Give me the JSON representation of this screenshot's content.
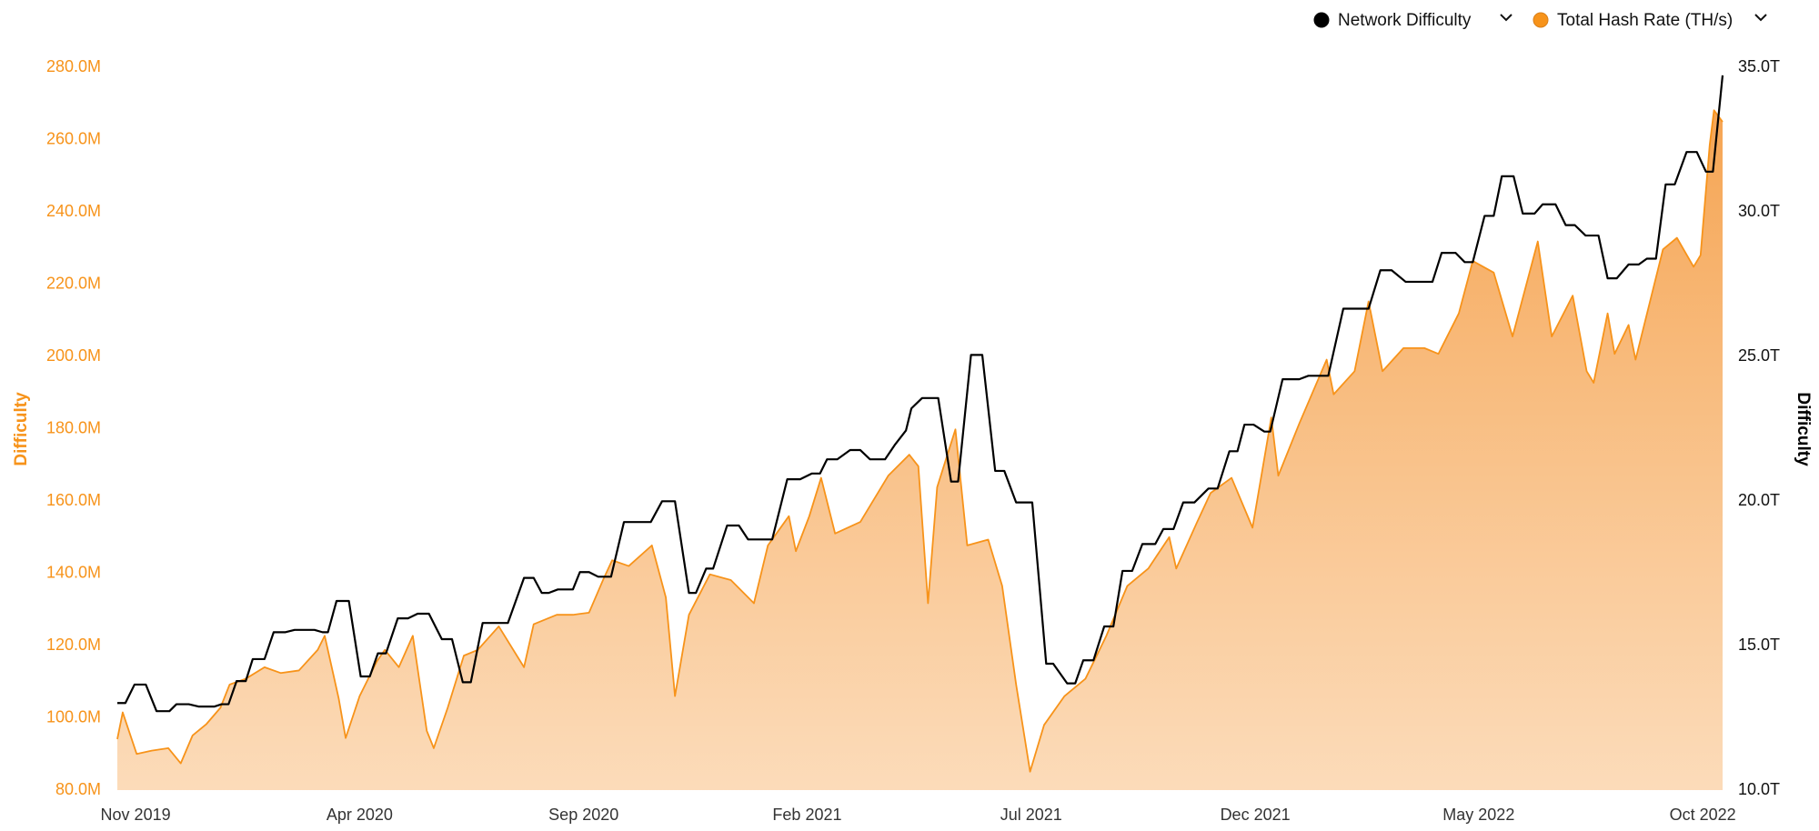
{
  "chart_data": {
    "type": "line",
    "y_label": "Difficulty",
    "y2_label": "Difficulty",
    "xlim": [
      2019.799,
      2022.787
    ],
    "xticks": [
      {
        "value": 2019.833,
        "label": "Nov 2019"
      },
      {
        "value": 2020.25,
        "label": "Apr 2020"
      },
      {
        "value": 2020.667,
        "label": "Sep 2020"
      },
      {
        "value": 2021.083,
        "label": "Feb 2021"
      },
      {
        "value": 2021.5,
        "label": "Jul 2021"
      },
      {
        "value": 2021.917,
        "label": "Dec 2021"
      },
      {
        "value": 2022.333,
        "label": "May 2022"
      },
      {
        "value": 2022.75,
        "label": "Oct 2022"
      }
    ],
    "ylim": [
      80,
      280
    ],
    "yticks": [
      {
        "value": 80,
        "label": "80.0M"
      },
      {
        "value": 100,
        "label": "100.0M"
      },
      {
        "value": 120,
        "label": "120.0M"
      },
      {
        "value": 140,
        "label": "140.0M"
      },
      {
        "value": 160,
        "label": "160.0M"
      },
      {
        "value": 180,
        "label": "180.0M"
      },
      {
        "value": 200,
        "label": "200.0M"
      },
      {
        "value": 220,
        "label": "220.0M"
      },
      {
        "value": 240,
        "label": "240.0M"
      },
      {
        "value": 260,
        "label": "260.0M"
      },
      {
        "value": 280,
        "label": "280.0M"
      }
    ],
    "y2lim": [
      10,
      35
    ],
    "y2ticks": [
      {
        "value": 10,
        "label": "10.0T"
      },
      {
        "value": 15,
        "label": "15.0T"
      },
      {
        "value": 20,
        "label": "20.0T"
      },
      {
        "value": 25,
        "label": "25.0T"
      },
      {
        "value": 30,
        "label": "30.0T"
      },
      {
        "value": 35,
        "label": "35.0T"
      }
    ],
    "legend": "top-right",
    "grid": false,
    "series": [
      {
        "name": "Network Difficulty",
        "color": "#000000",
        "axis": "y2",
        "x": [
          2019.799,
          2019.814,
          2019.831,
          2019.852,
          2019.872,
          2019.896,
          2019.909,
          2019.932,
          2019.95,
          2019.98,
          2019.993,
          2020.006,
          2020.021,
          2020.038,
          2020.051,
          2020.073,
          2020.09,
          2020.112,
          2020.129,
          2020.166,
          2020.181,
          2020.191,
          2020.207,
          2020.23,
          2020.252,
          2020.269,
          2020.284,
          2020.299,
          2020.321,
          2020.34,
          2020.358,
          2020.379,
          2020.403,
          2020.422,
          2020.442,
          2020.457,
          2020.479,
          2020.526,
          2020.556,
          2020.574,
          2020.589,
          2020.602,
          2020.619,
          2020.647,
          2020.66,
          2020.677,
          2020.694,
          2020.718,
          2020.742,
          2020.792,
          2020.813,
          2020.837,
          2020.863,
          2020.876,
          2020.895,
          2020.908,
          2020.934,
          2020.956,
          2020.973,
          2021.018,
          2021.046,
          2021.07,
          2021.092,
          2021.107,
          2021.12,
          2021.139,
          2021.163,
          2021.182,
          2021.2,
          2021.228,
          2021.247,
          2021.267,
          2021.277,
          2021.297,
          2021.327,
          2021.351,
          2021.364,
          2021.388,
          2021.409,
          2021.433,
          2021.45,
          2021.472,
          2021.502,
          2021.528,
          2021.541,
          2021.567,
          2021.582,
          2021.597,
          2021.616,
          2021.636,
          2021.653,
          2021.67,
          2021.688,
          2021.707,
          2021.731,
          2021.746,
          2021.765,
          2021.783,
          2021.804,
          2021.83,
          2021.847,
          2021.869,
          2021.884,
          2021.897,
          2021.914,
          2021.934,
          2021.945,
          2021.968,
          2021.999,
          2022.016,
          2022.053,
          2022.081,
          2022.128,
          2022.15,
          2022.171,
          2022.197,
          2022.247,
          2022.264,
          2022.29,
          2022.307,
          2022.322,
          2022.344,
          2022.361,
          2022.376,
          2022.398,
          2022.415,
          2022.437,
          2022.452,
          2022.476,
          2022.495,
          2022.512,
          2022.532,
          2022.556,
          2022.573,
          2022.59,
          2022.612,
          2022.631,
          2022.646,
          2022.663,
          2022.681,
          2022.698,
          2022.72,
          2022.739,
          2022.756,
          2022.769,
          2022.787
        ],
        "values": [
          13.01,
          13.01,
          13.65,
          13.65,
          12.73,
          12.73,
          12.97,
          12.97,
          12.89,
          12.89,
          12.97,
          12.97,
          13.77,
          13.77,
          14.53,
          14.53,
          15.46,
          15.46,
          15.54,
          15.54,
          15.46,
          15.46,
          16.54,
          16.54,
          13.93,
          13.93,
          14.73,
          14.73,
          15.94,
          15.94,
          16.1,
          16.1,
          15.22,
          15.22,
          13.73,
          13.73,
          15.78,
          15.78,
          17.34,
          17.34,
          16.82,
          16.82,
          16.94,
          16.94,
          17.54,
          17.54,
          17.38,
          17.38,
          19.27,
          19.27,
          19.99,
          19.99,
          16.82,
          16.82,
          17.66,
          17.66,
          19.15,
          19.15,
          18.67,
          18.67,
          20.75,
          20.75,
          20.95,
          20.95,
          21.44,
          21.44,
          21.76,
          21.76,
          21.44,
          21.44,
          21.96,
          22.44,
          23.2,
          23.56,
          23.56,
          20.67,
          20.67,
          25.05,
          25.05,
          21.04,
          21.04,
          19.95,
          19.95,
          14.37,
          14.37,
          13.69,
          13.69,
          14.49,
          14.49,
          15.66,
          15.66,
          17.58,
          17.58,
          18.51,
          18.51,
          19.03,
          19.03,
          19.95,
          19.95,
          20.43,
          20.43,
          21.72,
          21.72,
          22.64,
          22.64,
          22.4,
          22.4,
          24.21,
          24.21,
          24.33,
          24.33,
          26.65,
          26.65,
          27.98,
          27.98,
          27.58,
          27.58,
          28.58,
          28.58,
          28.26,
          28.26,
          29.86,
          29.86,
          31.23,
          31.23,
          29.94,
          29.94,
          30.26,
          30.26,
          29.54,
          29.54,
          29.18,
          29.18,
          27.7,
          27.7,
          28.18,
          28.18,
          28.38,
          28.38,
          30.95,
          30.95,
          32.07,
          32.07,
          31.39,
          31.39,
          34.72
        ]
      },
      {
        "name": "Total Hash Rate (TH/s)",
        "color": "#f7931a",
        "axis": "y",
        "x": [
          2019.799,
          2019.809,
          2019.835,
          2019.863,
          2019.894,
          2019.917,
          2019.939,
          2019.965,
          2019.991,
          2020.008,
          2020.038,
          2020.073,
          2020.103,
          2020.137,
          2020.172,
          2020.185,
          2020.211,
          2020.224,
          2020.25,
          2020.282,
          2020.297,
          2020.323,
          2020.349,
          2020.375,
          2020.388,
          2020.414,
          2020.444,
          2020.47,
          2020.509,
          2020.556,
          2020.574,
          2020.617,
          2020.647,
          2020.677,
          2020.703,
          2020.72,
          2020.751,
          2020.794,
          2020.82,
          2020.837,
          2020.863,
          2020.902,
          2020.941,
          2020.984,
          2021.01,
          2021.049,
          2021.062,
          2021.087,
          2021.109,
          2021.135,
          2021.182,
          2021.234,
          2021.273,
          2021.29,
          2021.308,
          2021.325,
          2021.359,
          2021.381,
          2021.42,
          2021.446,
          2021.472,
          2021.498,
          2021.524,
          2021.562,
          2021.601,
          2021.64,
          2021.679,
          2021.718,
          2021.757,
          2021.77,
          2021.809,
          2021.834,
          2021.873,
          2021.912,
          2021.947,
          2021.96,
          2021.999,
          2022.05,
          2022.063,
          2022.102,
          2022.128,
          2022.154,
          2022.193,
          2022.232,
          2022.258,
          2022.296,
          2022.322,
          2022.361,
          2022.396,
          2022.443,
          2022.469,
          2022.508,
          2022.534,
          2022.547,
          2022.573,
          2022.586,
          2022.612,
          2022.625,
          2022.676,
          2022.702,
          2022.733,
          2022.746,
          2022.763,
          2022.771,
          2022.787
        ],
        "values": [
          94.1,
          101.5,
          90.0,
          90.9,
          91.6,
          87.4,
          95.1,
          98.3,
          102.8,
          109.2,
          110.8,
          114.0,
          112.4,
          113.1,
          118.8,
          122.7,
          105.4,
          94.4,
          106.0,
          115.6,
          118.8,
          114.0,
          122.7,
          96.4,
          91.6,
          102.8,
          117.2,
          118.8,
          125.3,
          114.0,
          125.9,
          128.5,
          128.5,
          129.1,
          138.1,
          143.6,
          142.0,
          147.7,
          133.3,
          106.0,
          128.5,
          139.7,
          138.1,
          131.7,
          147.7,
          155.8,
          146.1,
          155.8,
          166.4,
          151.0,
          154.2,
          167.0,
          172.8,
          169.6,
          131.7,
          163.8,
          179.8,
          147.7,
          149.3,
          136.5,
          109.2,
          85.1,
          98.0,
          106.0,
          110.8,
          122.7,
          136.5,
          141.3,
          150.0,
          141.3,
          154.2,
          162.2,
          166.4,
          152.6,
          183.1,
          167.0,
          181.4,
          199.1,
          189.5,
          195.9,
          215.2,
          195.9,
          202.3,
          202.3,
          200.7,
          211.9,
          226.4,
          223.2,
          205.5,
          231.8,
          205.5,
          216.8,
          195.9,
          192.7,
          211.9,
          200.7,
          208.7,
          199.1,
          229.6,
          232.8,
          224.8,
          228.0,
          258.5,
          268.1,
          264.9
        ]
      }
    ]
  }
}
